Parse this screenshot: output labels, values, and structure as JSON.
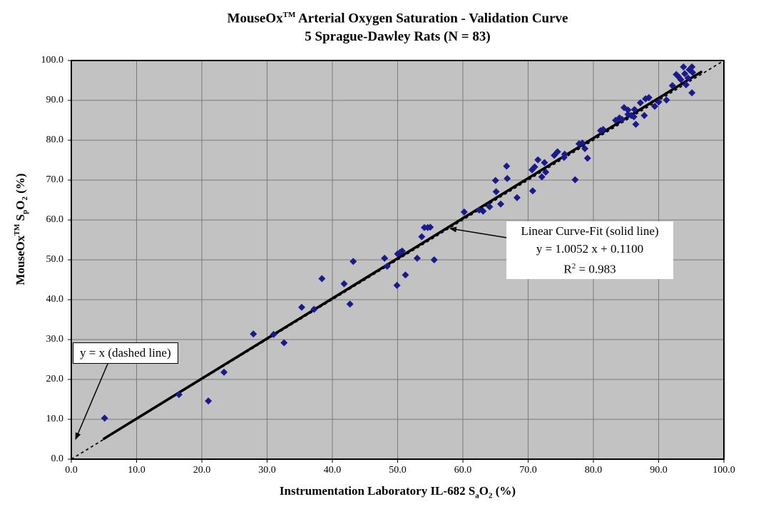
{
  "title": {
    "line1_prefix": "MouseOx",
    "line1_sup": "TM",
    "line1_rest": " Arterial Oxygen Saturation - Validation Curve",
    "line2": "5 Sprague-Dawley Rats (N = 83)"
  },
  "x_axis": {
    "title_p1": "Instrumentation Laboratory IL-682 S",
    "title_sub1": "a",
    "title_p2": "O",
    "title_sub2": "2",
    "title_p3": " (%)",
    "ticks": [
      "0.0",
      "10.0",
      "20.0",
      "30.0",
      "40.0",
      "50.0",
      "60.0",
      "70.0",
      "80.0",
      "90.0",
      "100.0"
    ]
  },
  "y_axis": {
    "title_p1": "MouseOx",
    "title_sup": "TM",
    "title_p2": " S",
    "title_sub1": "p",
    "title_p3": "O",
    "title_sub2": "2",
    "title_p4": " (%)",
    "ticks": [
      "0.0",
      "10.0",
      "20.0",
      "30.0",
      "40.0",
      "50.0",
      "60.0",
      "70.0",
      "80.0",
      "90.0",
      "100.0"
    ]
  },
  "annotations": {
    "identity_label": "y = x (dashed line)",
    "fit_line1": "Linear Curve-Fit (solid line)",
    "fit_line2": "y = 1.0052 x + 0.1100",
    "fit_line3_p1": "R",
    "fit_line3_sup": "2",
    "fit_line3_p2": " = 0.983"
  },
  "chart_data": {
    "type": "scatter",
    "title": "MouseOx(TM) Arterial Oxygen Saturation - Validation Curve / 5 Sprague-Dawley Rats (N = 83)",
    "xlabel": "Instrumentation Laboratory IL-682 SaO2 (%)",
    "ylabel": "MouseOx(TM) SpO2 (%)",
    "xlim": [
      0,
      100
    ],
    "ylim": [
      0,
      100
    ],
    "tick_step": 10,
    "grid": true,
    "plot_bg_color": "#c2c2c2",
    "grid_color": "#7a7a7a",
    "frame_color": "#000000",
    "marker": {
      "shape": "diamond",
      "color": "#1a1a8c",
      "size": 10
    },
    "fit_line": {
      "label": "Linear Curve-Fit (solid line)",
      "slope": 1.0052,
      "intercept": 0.11,
      "r_squared": 0.983,
      "style": "solid",
      "color": "#000000",
      "x_start": 5.0,
      "x_end": 96.5
    },
    "identity_line": {
      "label": "y = x (dashed line)",
      "slope": 1,
      "intercept": 0,
      "style": "dashed",
      "color": "#000000",
      "x_start": 0,
      "x_end": 100
    },
    "points": [
      [
        5.1,
        10.3
      ],
      [
        16.5,
        16.2
      ],
      [
        21.0,
        14.6
      ],
      [
        23.4,
        21.8
      ],
      [
        27.9,
        31.4
      ],
      [
        31.0,
        31.3
      ],
      [
        32.6,
        29.2
      ],
      [
        35.3,
        38.1
      ],
      [
        37.2,
        37.6
      ],
      [
        38.4,
        45.3
      ],
      [
        41.8,
        44.0
      ],
      [
        42.7,
        38.9
      ],
      [
        43.2,
        49.6
      ],
      [
        48.0,
        50.4
      ],
      [
        48.4,
        48.4
      ],
      [
        49.9,
        43.6
      ],
      [
        50.0,
        51.5
      ],
      [
        50.4,
        51.9
      ],
      [
        50.7,
        52.2
      ],
      [
        51.2,
        46.2
      ],
      [
        53.0,
        50.4
      ],
      [
        53.7,
        55.8
      ],
      [
        54.1,
        58.1
      ],
      [
        54.6,
        58.1
      ],
      [
        55.0,
        58.2
      ],
      [
        55.6,
        50.0
      ],
      [
        60.2,
        62.0
      ],
      [
        62.5,
        62.5
      ],
      [
        63.1,
        62.2
      ],
      [
        64.1,
        63.3
      ],
      [
        65.0,
        69.9
      ],
      [
        65.1,
        67.1
      ],
      [
        65.8,
        64.0
      ],
      [
        66.8,
        70.4
      ],
      [
        66.7,
        73.5
      ],
      [
        68.3,
        65.6
      ],
      [
        70.7,
        67.3
      ],
      [
        70.6,
        72.6
      ],
      [
        71.0,
        73.3
      ],
      [
        71.5,
        75.1
      ],
      [
        72.1,
        70.8
      ],
      [
        72.5,
        74.4
      ],
      [
        72.7,
        72.0
      ],
      [
        74.0,
        76.2
      ],
      [
        74.5,
        77.1
      ],
      [
        75.6,
        76.5
      ],
      [
        75.5,
        75.7
      ],
      [
        77.2,
        70.1
      ],
      [
        77.8,
        79.1
      ],
      [
        78.3,
        79.3
      ],
      [
        78.7,
        77.9
      ],
      [
        79.1,
        75.5
      ],
      [
        81.1,
        82.4
      ],
      [
        81.5,
        82.7
      ],
      [
        83.4,
        85.0
      ],
      [
        84.0,
        85.6
      ],
      [
        84.4,
        85.2
      ],
      [
        84.7,
        88.2
      ],
      [
        85.3,
        87.6
      ],
      [
        85.3,
        86.5
      ],
      [
        85.8,
        86.2
      ],
      [
        86.2,
        85.9
      ],
      [
        86.3,
        87.7
      ],
      [
        86.5,
        84.0
      ],
      [
        87.2,
        89.4
      ],
      [
        87.8,
        86.2
      ],
      [
        88.0,
        90.4
      ],
      [
        88.5,
        90.7
      ],
      [
        89.4,
        88.5
      ],
      [
        90.0,
        89.6
      ],
      [
        91.2,
        90.1
      ],
      [
        92.1,
        93.7
      ],
      [
        92.7,
        96.5
      ],
      [
        93.0,
        96.0
      ],
      [
        93.4,
        95.2
      ],
      [
        93.8,
        98.4
      ],
      [
        94.0,
        96.7
      ],
      [
        94.2,
        93.9
      ],
      [
        94.5,
        95.6
      ],
      [
        94.7,
        97.7
      ],
      [
        95.1,
        98.4
      ],
      [
        95.2,
        97.0
      ],
      [
        95.1,
        91.9
      ]
    ]
  }
}
